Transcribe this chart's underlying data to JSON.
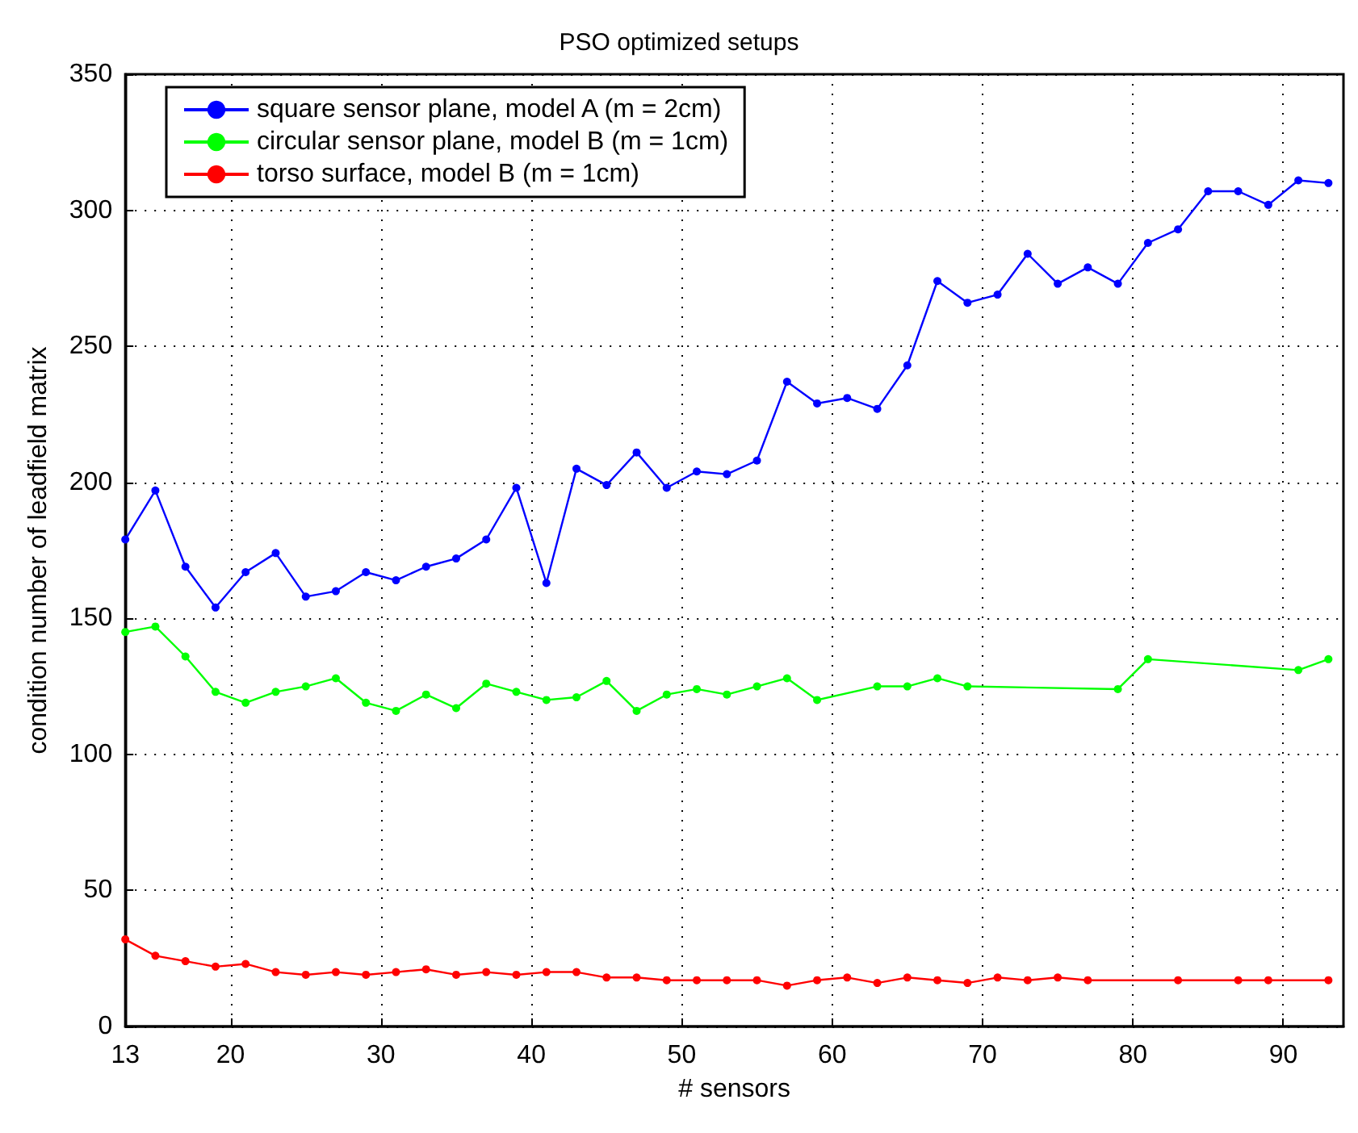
{
  "chart_data": {
    "type": "line",
    "title": "PSO optimized setups",
    "xlabel": "# sensors",
    "ylabel": "condition number of leadfield matrix",
    "xlim": [
      13,
      94
    ],
    "xticks": [
      13,
      20,
      30,
      40,
      50,
      60,
      70,
      80,
      90
    ],
    "ylim": [
      0,
      350
    ],
    "yticks": [
      0,
      50,
      100,
      150,
      200,
      250,
      300,
      350
    ],
    "grid": true,
    "legend": "top left",
    "marker": "circle",
    "line_style": "solid",
    "series": [
      {
        "name": "square sensor plane, model A (m = 2cm)",
        "color": "#0000ff",
        "x": [
          13,
          15,
          17,
          19,
          21,
          23,
          25,
          27,
          29,
          31,
          33,
          35,
          37,
          39,
          41,
          43,
          45,
          47,
          49,
          51,
          53,
          55,
          57,
          59,
          61,
          63,
          65,
          67,
          69,
          71,
          73,
          75,
          77,
          79,
          81,
          83,
          85,
          87,
          89,
          91,
          93
        ],
        "values": [
          179,
          197,
          169,
          154,
          167,
          174,
          158,
          160,
          167,
          164,
          169,
          172,
          179,
          198,
          163,
          205,
          199,
          211,
          198,
          204,
          203,
          208,
          237,
          229,
          231,
          227,
          243,
          274,
          266,
          269,
          284,
          273,
          279,
          273,
          288,
          293,
          307,
          307,
          302,
          311,
          310
        ]
      },
      {
        "name": "circular sensor plane, model B (m = 1cm)",
        "color": "#00ff00",
        "x": [
          13,
          15,
          17,
          19,
          21,
          23,
          25,
          27,
          29,
          31,
          33,
          35,
          37,
          39,
          41,
          43,
          45,
          47,
          49,
          51,
          53,
          55,
          57,
          59,
          63,
          65,
          67,
          69,
          79,
          81,
          91,
          93
        ],
        "values": [
          145,
          147,
          136,
          123,
          119,
          123,
          125,
          128,
          119,
          116,
          122,
          117,
          126,
          123,
          120,
          121,
          127,
          116,
          122,
          124,
          122,
          125,
          128,
          120,
          125,
          125,
          128,
          125,
          124,
          135,
          131,
          135
        ]
      },
      {
        "name": "torso surface, model B (m = 1cm)",
        "color": "#ff0000",
        "x": [
          13,
          15,
          17,
          19,
          21,
          23,
          25,
          27,
          29,
          31,
          33,
          35,
          37,
          39,
          41,
          43,
          45,
          47,
          49,
          51,
          53,
          55,
          57,
          59,
          61,
          63,
          65,
          67,
          69,
          71,
          73,
          75,
          77,
          83,
          87,
          89,
          93
        ],
        "values": [
          32,
          26,
          24,
          22,
          23,
          20,
          19,
          20,
          19,
          20,
          21,
          19,
          20,
          19,
          20,
          20,
          18,
          18,
          17,
          17,
          17,
          17,
          15,
          17,
          18,
          16,
          18,
          17,
          16,
          18,
          17,
          18,
          17,
          17,
          17,
          17,
          17
        ]
      }
    ]
  }
}
